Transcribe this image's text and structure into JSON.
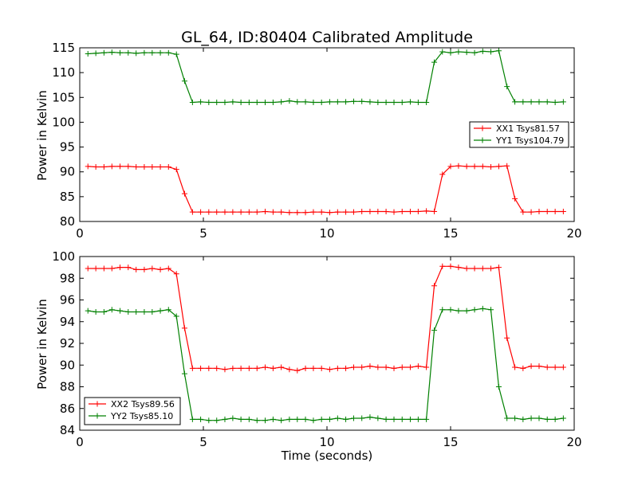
{
  "chart_data": [
    {
      "type": "line",
      "title": "GL_64, ID:80404 Calibrated Amplitude",
      "xlabel": "",
      "ylabel": "Power in Kelvin",
      "xlim": [
        0,
        20
      ],
      "ylim": [
        80,
        115
      ],
      "xticks": [
        0,
        5,
        10,
        15,
        20
      ],
      "yticks": [
        80,
        85,
        90,
        95,
        100,
        105,
        110,
        115
      ],
      "grid": false,
      "legend_position": "center-right",
      "x": [
        0.33,
        0.65,
        0.98,
        1.3,
        1.63,
        1.96,
        2.28,
        2.61,
        2.93,
        3.26,
        3.59,
        3.91,
        4.24,
        4.56,
        4.89,
        5.22,
        5.54,
        5.87,
        6.19,
        6.52,
        6.85,
        7.17,
        7.5,
        7.82,
        8.15,
        8.48,
        8.8,
        9.13,
        9.45,
        9.78,
        10.11,
        10.43,
        10.76,
        11.08,
        11.41,
        11.74,
        12.06,
        12.39,
        12.71,
        13.04,
        13.37,
        13.69,
        14.02,
        14.34,
        14.67,
        15.0,
        15.32,
        15.65,
        15.97,
        16.3,
        16.63,
        16.95,
        17.28,
        17.6,
        17.93,
        18.26,
        18.58,
        18.91,
        19.23,
        19.56
      ],
      "series": [
        {
          "name": "XX1 Tsys81.57",
          "color": "#ff0000",
          "values": [
            91.1,
            91.0,
            91.0,
            91.1,
            91.1,
            91.1,
            91.0,
            91.0,
            91.0,
            91.0,
            91.0,
            90.5,
            85.6,
            81.9,
            81.9,
            81.9,
            81.9,
            81.9,
            81.9,
            81.9,
            81.9,
            81.9,
            82.0,
            81.9,
            81.9,
            81.8,
            81.8,
            81.8,
            81.9,
            81.9,
            81.8,
            81.9,
            81.9,
            81.9,
            82.0,
            82.0,
            82.0,
            82.0,
            81.9,
            82.0,
            82.0,
            82.0,
            82.1,
            82.0,
            89.5,
            91.1,
            91.2,
            91.1,
            91.1,
            91.1,
            91.0,
            91.1,
            91.2,
            84.6,
            81.9,
            81.9,
            82.0,
            82.0,
            82.0,
            82.0
          ]
        },
        {
          "name": "YY1 Tsys104.79",
          "color": "#008000",
          "values": [
            113.8,
            113.9,
            114.0,
            114.1,
            114.0,
            114.0,
            113.9,
            114.0,
            114.0,
            114.0,
            114.0,
            113.7,
            108.3,
            104.0,
            104.1,
            104.0,
            104.0,
            104.0,
            104.1,
            104.0,
            104.0,
            104.0,
            104.0,
            104.0,
            104.1,
            104.3,
            104.1,
            104.1,
            104.0,
            104.0,
            104.1,
            104.1,
            104.1,
            104.2,
            104.2,
            104.1,
            104.0,
            104.0,
            104.0,
            104.0,
            104.1,
            104.0,
            104.0,
            112.1,
            114.2,
            114.0,
            114.2,
            114.1,
            114.0,
            114.3,
            114.2,
            114.4,
            107.2,
            104.1,
            104.1,
            104.1,
            104.1,
            104.1,
            104.0,
            104.1
          ]
        }
      ]
    },
    {
      "type": "line",
      "title": "",
      "xlabel": "Time (seconds)",
      "ylabel": "Power in Kelvin",
      "xlim": [
        0,
        20
      ],
      "ylim": [
        84,
        100
      ],
      "xticks": [
        0,
        5,
        10,
        15,
        20
      ],
      "yticks": [
        84,
        86,
        88,
        90,
        92,
        94,
        96,
        98,
        100
      ],
      "grid": false,
      "legend_position": "lower-left",
      "x": [
        0.33,
        0.65,
        0.98,
        1.3,
        1.63,
        1.96,
        2.28,
        2.61,
        2.93,
        3.26,
        3.59,
        3.91,
        4.24,
        4.56,
        4.89,
        5.22,
        5.54,
        5.87,
        6.19,
        6.52,
        6.85,
        7.17,
        7.5,
        7.82,
        8.15,
        8.48,
        8.8,
        9.13,
        9.45,
        9.78,
        10.11,
        10.43,
        10.76,
        11.08,
        11.41,
        11.74,
        12.06,
        12.39,
        12.71,
        13.04,
        13.37,
        13.69,
        14.02,
        14.34,
        14.67,
        15.0,
        15.32,
        15.65,
        15.97,
        16.3,
        16.63,
        16.95,
        17.28,
        17.6,
        17.93,
        18.26,
        18.58,
        18.91,
        19.23,
        19.56
      ],
      "series": [
        {
          "name": "XX2 Tsys89.56",
          "color": "#ff0000",
          "values": [
            98.9,
            98.9,
            98.9,
            98.9,
            99.0,
            99.0,
            98.8,
            98.8,
            98.9,
            98.8,
            98.9,
            98.4,
            93.4,
            89.7,
            89.7,
            89.7,
            89.7,
            89.6,
            89.7,
            89.7,
            89.7,
            89.7,
            89.8,
            89.7,
            89.8,
            89.6,
            89.5,
            89.7,
            89.7,
            89.7,
            89.6,
            89.7,
            89.7,
            89.8,
            89.8,
            89.9,
            89.8,
            89.8,
            89.7,
            89.8,
            89.8,
            89.9,
            89.8,
            97.3,
            99.1,
            99.1,
            99.0,
            98.9,
            98.9,
            98.9,
            98.9,
            99.0,
            92.5,
            89.8,
            89.7,
            89.9,
            89.9,
            89.8,
            89.8,
            89.8
          ]
        },
        {
          "name": "YY2 Tsys85.10",
          "color": "#008000",
          "values": [
            95.0,
            94.9,
            94.9,
            95.1,
            95.0,
            94.9,
            94.9,
            94.9,
            94.9,
            95.0,
            95.1,
            94.5,
            89.2,
            85.0,
            85.0,
            84.9,
            84.9,
            85.0,
            85.1,
            85.0,
            85.0,
            84.9,
            84.9,
            85.0,
            84.9,
            85.0,
            85.0,
            85.0,
            84.9,
            85.0,
            85.0,
            85.1,
            85.0,
            85.1,
            85.1,
            85.2,
            85.1,
            85.0,
            85.0,
            85.0,
            85.0,
            85.0,
            85.0,
            93.2,
            95.1,
            95.1,
            95.0,
            95.0,
            95.1,
            95.2,
            95.1,
            88.0,
            85.1,
            85.1,
            85.0,
            85.1,
            85.1,
            85.0,
            85.0,
            85.1
          ]
        }
      ]
    }
  ]
}
